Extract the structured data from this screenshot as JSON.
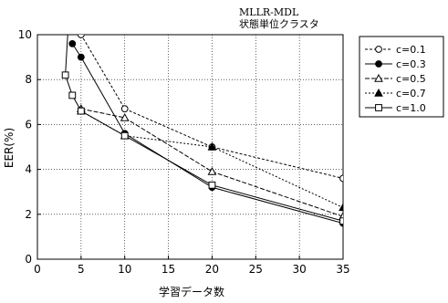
{
  "chart_data": {
    "type": "line",
    "title": "MLLR-MDL",
    "subtitle": "状態単位クラスタ",
    "xlabel": "学習データ数",
    "ylabel": "EER(%)",
    "xlim": [
      0,
      35
    ],
    "ylim": [
      0,
      10
    ],
    "xticks": [
      0,
      5,
      10,
      15,
      20,
      25,
      30,
      35
    ],
    "yticks": [
      0,
      2,
      4,
      6,
      8,
      10
    ],
    "grid": true,
    "legend_position": "right",
    "series": [
      {
        "name": "c=0.1",
        "marker": "circle-open",
        "dash": "3,2",
        "points": [
          [
            4.8,
            10.2
          ],
          [
            5,
            10.0
          ],
          [
            10,
            6.7
          ],
          [
            20,
            5.0
          ],
          [
            35,
            3.6
          ]
        ]
      },
      {
        "name": "c=0.3",
        "marker": "circle-filled",
        "dash": "",
        "points": [
          [
            4,
            9.6
          ],
          [
            5,
            9.0
          ],
          [
            10,
            5.6
          ],
          [
            20,
            3.2
          ],
          [
            35,
            1.6
          ]
        ]
      },
      {
        "name": "c=0.5",
        "marker": "triangle-open",
        "dash": "5,2",
        "points": [
          [
            5,
            6.7
          ],
          [
            10,
            6.3
          ],
          [
            20,
            3.9
          ],
          [
            35,
            1.9
          ]
        ]
      },
      {
        "name": "c=0.7",
        "marker": "triangle-filled",
        "dash": "2,2",
        "points": [
          [
            5,
            6.6
          ],
          [
            10,
            5.5
          ],
          [
            20,
            5.0
          ],
          [
            35,
            2.3
          ]
        ]
      },
      {
        "name": "c=1.0",
        "marker": "square-open",
        "dash": "",
        "points": [
          [
            3.5,
            10.2
          ],
          [
            3.2,
            8.2
          ],
          [
            4,
            7.3
          ],
          [
            5,
            6.6
          ],
          [
            10,
            5.5
          ],
          [
            20,
            3.3
          ],
          [
            35,
            1.7
          ]
        ]
      }
    ]
  }
}
